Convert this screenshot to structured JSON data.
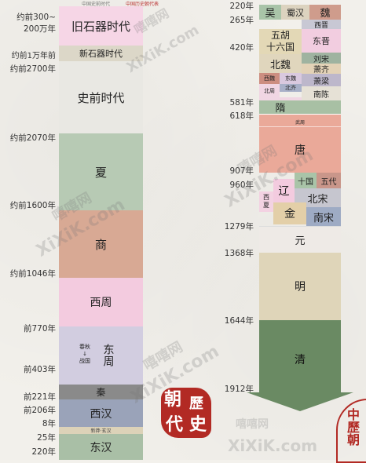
{
  "left_column": {
    "labels": [
      "约前300~",
      "200万年",
      "约前1万年前",
      "约前2700年",
      "约前2070年",
      "约前1600年",
      "约前1046年",
      "前770年",
      "前403年",
      "前221年",
      "前206年",
      "8年",
      "25年",
      "220年"
    ],
    "blocks": [
      {
        "name": "旧石器时代",
        "color": "#f6d6e6"
      },
      {
        "name": "新石器时代",
        "color": "#dcd7c8"
      },
      {
        "name": "史前时代",
        "color": "#e9e8e3"
      },
      {
        "name": "夏",
        "color": "#b7cab4"
      },
      {
        "name": "商",
        "color": "#d8a994"
      },
      {
        "name": "西周",
        "color": "#f3cbdf"
      },
      {
        "name": "东周",
        "color": "#d2cde0"
      },
      {
        "name": "秦",
        "color": "#8a8a8a"
      },
      {
        "name": "西汉",
        "color": "#9aa3b9"
      },
      {
        "name": "新莽·玄汉",
        "color": "#dcd2b8"
      },
      {
        "name": "东汉",
        "color": "#a9bfa6"
      }
    ],
    "dongzhou_sub": {
      "a": "春秋",
      "b": "战国"
    }
  },
  "right_column": {
    "labels": [
      "220年",
      "265年",
      "420年",
      "581年",
      "618年",
      "907年",
      "960年",
      "1279年",
      "1368年",
      "1644年",
      "1912年"
    ],
    "blocks": [
      {
        "name": "吴",
        "color": "#a9c4a8"
      },
      {
        "name": "蜀汉",
        "color": "#dcd3bf"
      },
      {
        "name": "魏",
        "color": "#cf9c8c"
      },
      {
        "name": "西晋",
        "color": "#c8c8d4"
      },
      {
        "name": "五胡",
        "color": "#e3d8b6"
      },
      {
        "name": "十六国",
        "color": "#e3d8b6"
      },
      {
        "name": "东晋",
        "color": "#f2cde0"
      },
      {
        "name": "北魏",
        "color": "#e0d6bd"
      },
      {
        "name": "刘宋",
        "color": "#9fb3a0"
      },
      {
        "name": "萧齐",
        "color": "#e3d2b6"
      },
      {
        "name": "西魏",
        "color": "#cc8e80"
      },
      {
        "name": "东魏",
        "color": "#d9c9df"
      },
      {
        "name": "北齐",
        "color": "#a8b0c8"
      },
      {
        "name": "北周",
        "color": "#f0d6e3"
      },
      {
        "name": "萧梁",
        "color": "#bdb7cb"
      },
      {
        "name": "南陈",
        "color": "#e6e1d6"
      },
      {
        "name": "隋",
        "color": "#a8c0a4"
      },
      {
        "name": "武周",
        "color": "#eaa999"
      },
      {
        "name": "唐",
        "color": "#eaa999"
      },
      {
        "name": "辽",
        "color": "#f3cbdf"
      },
      {
        "name": "十国",
        "color": "#a9c4a8"
      },
      {
        "name": "五代",
        "color": "#c9968a"
      },
      {
        "name": "北宋",
        "color": "#c6c6cf"
      },
      {
        "name": "西",
        "color": "#f3d2e2"
      },
      {
        "name": "夏",
        "color": "#f3d2e2"
      },
      {
        "name": "金",
        "color": "#e3cfa8"
      },
      {
        "name": "南宋",
        "color": "#9eabc4"
      },
      {
        "name": "元",
        "color": "#eeeae6"
      },
      {
        "name": "明",
        "color": "#dfd5b9"
      },
      {
        "name": "清",
        "color": "#6a8a63"
      }
    ]
  },
  "top_cut_labels": [
    "中国史前时代",
    "中国历史朝代表"
  ],
  "watermarks": [
    "嘻嘻网",
    "XiXiK.com"
  ],
  "stamp_text": [
    "朝",
    "歷",
    "代",
    "史"
  ],
  "corner_seal_text": [
    "中",
    "歷",
    "朝"
  ]
}
